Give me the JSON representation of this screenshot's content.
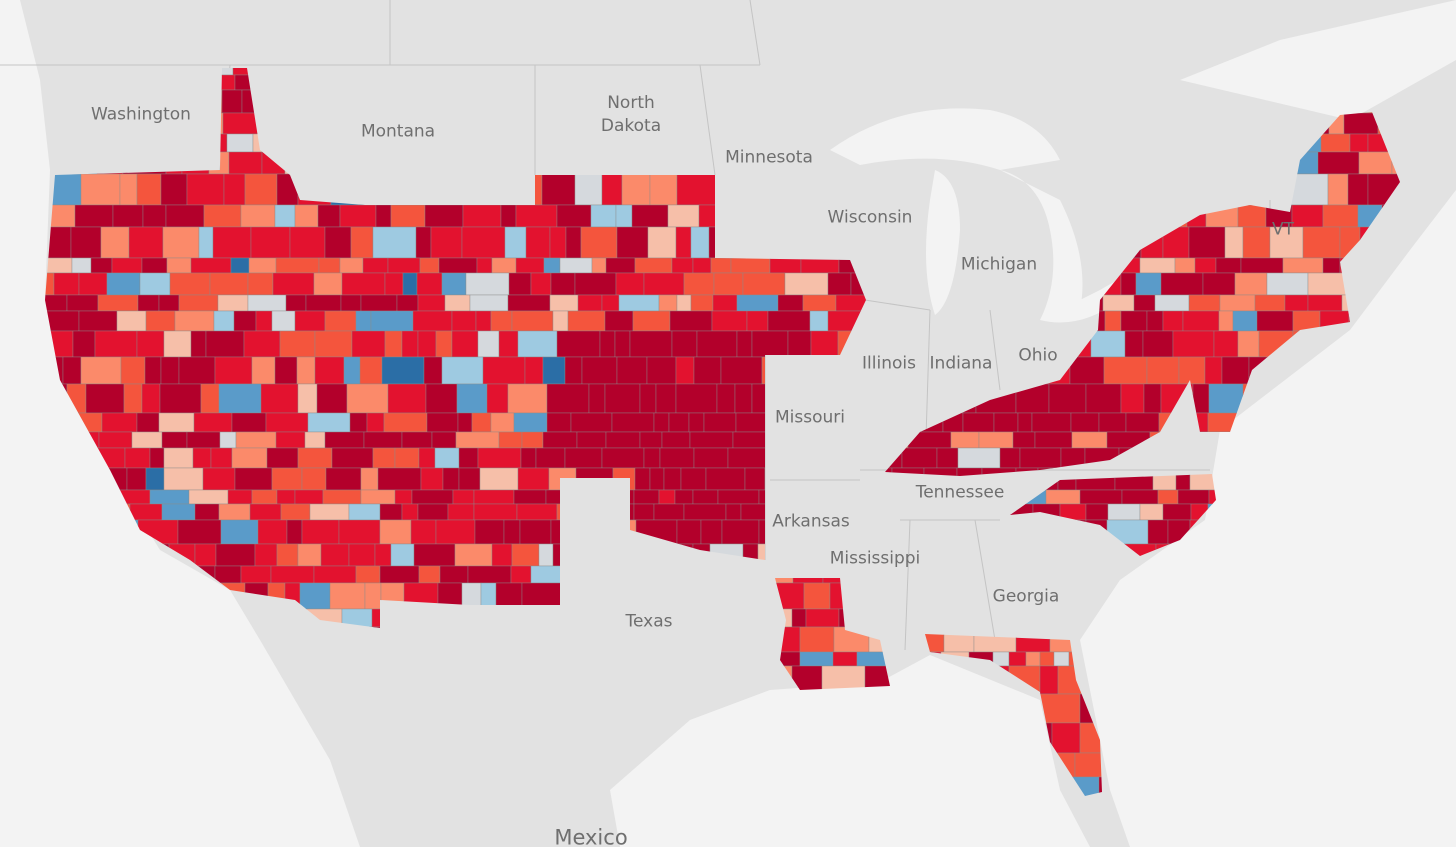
{
  "labels": [
    "Washington",
    "Montana",
    "North Dakota",
    "Minnesota",
    "Wisconsin",
    "Michigan",
    "Illinois",
    "Indiana",
    "Ohio",
    "Missouri",
    "Tennessee",
    "Arkansas",
    "Mississippi",
    "Georgia",
    "Texas",
    "VT",
    "Mexico"
  ]
}
